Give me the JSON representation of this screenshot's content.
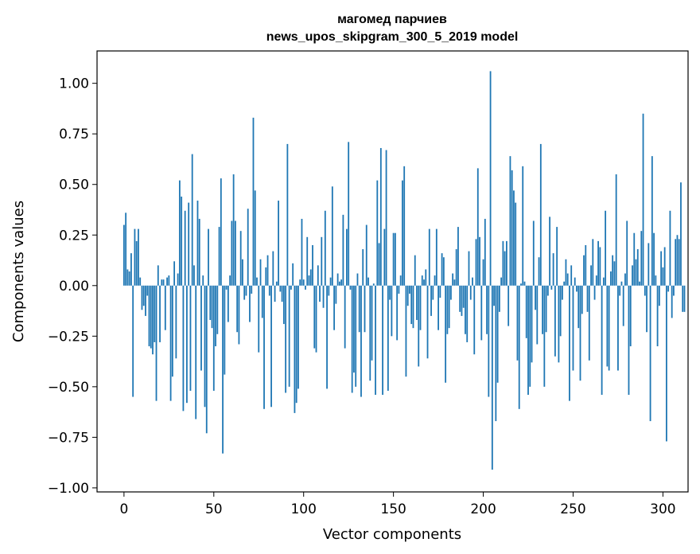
{
  "chart_data": {
    "type": "bar",
    "title_line1": "магомед парчиев",
    "title_line2": "news_upos_skipgram_300_5_2019 model",
    "xlabel": "Vector components",
    "ylabel": "Components values",
    "xlim": [
      -15,
      314
    ],
    "ylim": [
      -1.02,
      1.16
    ],
    "xticks": [
      0,
      50,
      100,
      150,
      200,
      250,
      300
    ],
    "yticks": [
      -1.0,
      -0.75,
      -0.5,
      -0.25,
      0.0,
      0.25,
      0.5,
      0.75,
      1.0
    ],
    "ytick_labels": [
      "−1.00",
      "−0.75",
      "−0.50",
      "−0.25",
      "0.00",
      "0.25",
      "0.50",
      "0.75",
      "1.00"
    ],
    "grid": false,
    "color": "#1f77b4",
    "values": [
      0.3,
      0.36,
      0.08,
      0.07,
      0.16,
      -0.55,
      0.28,
      0.22,
      0.28,
      0.04,
      -0.12,
      -0.1,
      -0.15,
      -0.05,
      -0.3,
      -0.31,
      -0.34,
      -0.28,
      -0.57,
      0.1,
      -0.28,
      0.03,
      0.03,
      -0.22,
      0.04,
      0.05,
      -0.57,
      -0.45,
      0.12,
      -0.36,
      0.06,
      0.52,
      0.44,
      -0.62,
      0.37,
      -0.58,
      0.41,
      -0.52,
      0.65,
      0.1,
      -0.66,
      0.42,
      0.33,
      -0.42,
      0.05,
      -0.6,
      -0.73,
      0.28,
      -0.17,
      -0.21,
      -0.52,
      -0.3,
      -0.24,
      0.29,
      0.53,
      -0.83,
      -0.44,
      -0.02,
      -0.18,
      0.05,
      0.32,
      0.55,
      0.32,
      -0.23,
      -0.29,
      0.27,
      0.13,
      -0.07,
      -0.05,
      0.38,
      -0.18,
      -0.04,
      0.83,
      0.47,
      0.04,
      -0.33,
      0.13,
      -0.16,
      -0.61,
      0.09,
      0.15,
      -0.05,
      -0.6,
      0.17,
      -0.08,
      0.02,
      0.42,
      -0.03,
      -0.08,
      -0.19,
      -0.53,
      0.7,
      -0.5,
      -0.02,
      0.11,
      -0.63,
      -0.58,
      -0.51,
      0.03,
      0.33,
      0.03,
      -0.02,
      0.24,
      0.05,
      0.08,
      0.2,
      -0.31,
      -0.33,
      0.1,
      -0.08,
      0.24,
      -0.11,
      0.37,
      -0.51,
      -0.05,
      0.04,
      0.49,
      -0.22,
      -0.09,
      0.06,
      0.02,
      0.03,
      0.35,
      -0.31,
      0.28,
      0.71,
      -0.02,
      -0.53,
      -0.43,
      -0.5,
      0.06,
      -0.23,
      -0.55,
      0.18,
      -0.23,
      0.3,
      0.04,
      -0.47,
      -0.37,
      0.01,
      -0.54,
      0.52,
      0.21,
      0.68,
      -0.54,
      0.28,
      0.67,
      -0.52,
      -0.07,
      -0.25,
      0.26,
      0.26,
      -0.27,
      -0.04,
      0.05,
      0.52,
      0.59,
      -0.45,
      -0.1,
      -0.04,
      -0.19,
      -0.21,
      0.15,
      -0.17,
      -0.4,
      -0.22,
      0.05,
      0.03,
      0.08,
      -0.36,
      0.28,
      -0.15,
      -0.07,
      0.05,
      0.28,
      -0.22,
      -0.06,
      0.16,
      0.14,
      -0.48,
      -0.24,
      -0.21,
      -0.07,
      0.06,
      0.03,
      0.18,
      0.29,
      -0.13,
      -0.15,
      -0.11,
      -0.24,
      -0.28,
      0.17,
      -0.07,
      0.04,
      -0.34,
      0.23,
      0.58,
      0.24,
      -0.27,
      0.13,
      0.33,
      -0.24,
      -0.55,
      1.06,
      -0.91,
      -0.1,
      -0.67,
      -0.48,
      -0.13,
      0.04,
      0.22,
      0.17,
      0.22,
      -0.2,
      0.64,
      0.57,
      0.47,
      0.41,
      -0.37,
      -0.61,
      0.01,
      0.59,
      0.02,
      -0.26,
      -0.54,
      -0.5,
      -0.38,
      0.32,
      -0.12,
      -0.29,
      0.14,
      0.7,
      -0.24,
      -0.5,
      -0.23,
      -0.05,
      0.34,
      -0.02,
      0.16,
      -0.35,
      0.29,
      -0.38,
      -0.25,
      -0.07,
      0.02,
      0.13,
      0.06,
      -0.57,
      0.1,
      -0.42,
      0.04,
      -0.03,
      -0.21,
      -0.47,
      -0.14,
      0.15,
      0.2,
      -0.13,
      -0.37,
      0.1,
      0.23,
      -0.07,
      0.05,
      0.22,
      0.19,
      -0.54,
      0.04,
      0.37,
      -0.4,
      -0.42,
      0.07,
      0.15,
      0.12,
      0.55,
      -0.42,
      -0.05,
      0.02,
      -0.2,
      0.06,
      0.32,
      -0.54,
      -0.3,
      0.1,
      0.26,
      0.13,
      0.18,
      0.02,
      0.27,
      0.85,
      -0.05,
      -0.23,
      0.21,
      -0.67,
      0.64,
      0.26,
      0.05,
      -0.3,
      -0.1,
      0.17,
      0.09,
      0.19,
      -0.77,
      -0.03,
      0.37,
      -0.16,
      -0.05,
      0.23,
      0.25,
      0.23,
      0.51,
      -0.13,
      -0.13
    ]
  }
}
